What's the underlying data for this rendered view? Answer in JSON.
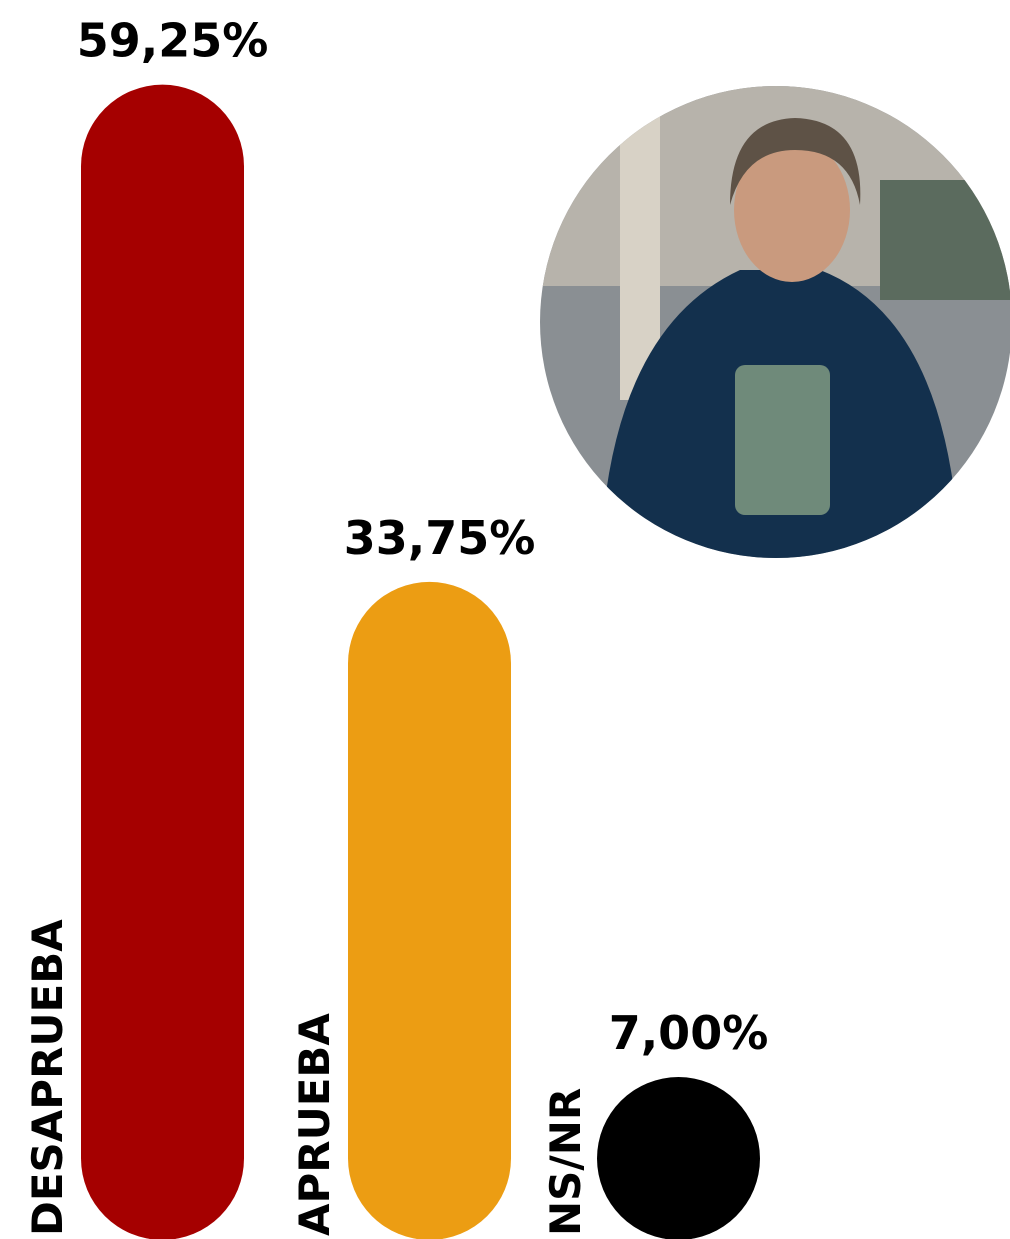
{
  "chart_data": {
    "type": "bar",
    "categories": [
      "DESAPRUEBA",
      "APRUEBA",
      "NS/NR"
    ],
    "values": [
      59.25,
      33.75,
      7.0
    ],
    "value_labels": [
      "59,25%",
      "33,75%",
      "7,00%"
    ],
    "colors": [
      "#a50000",
      "#ec9d13",
      "#000000"
    ]
  }
}
